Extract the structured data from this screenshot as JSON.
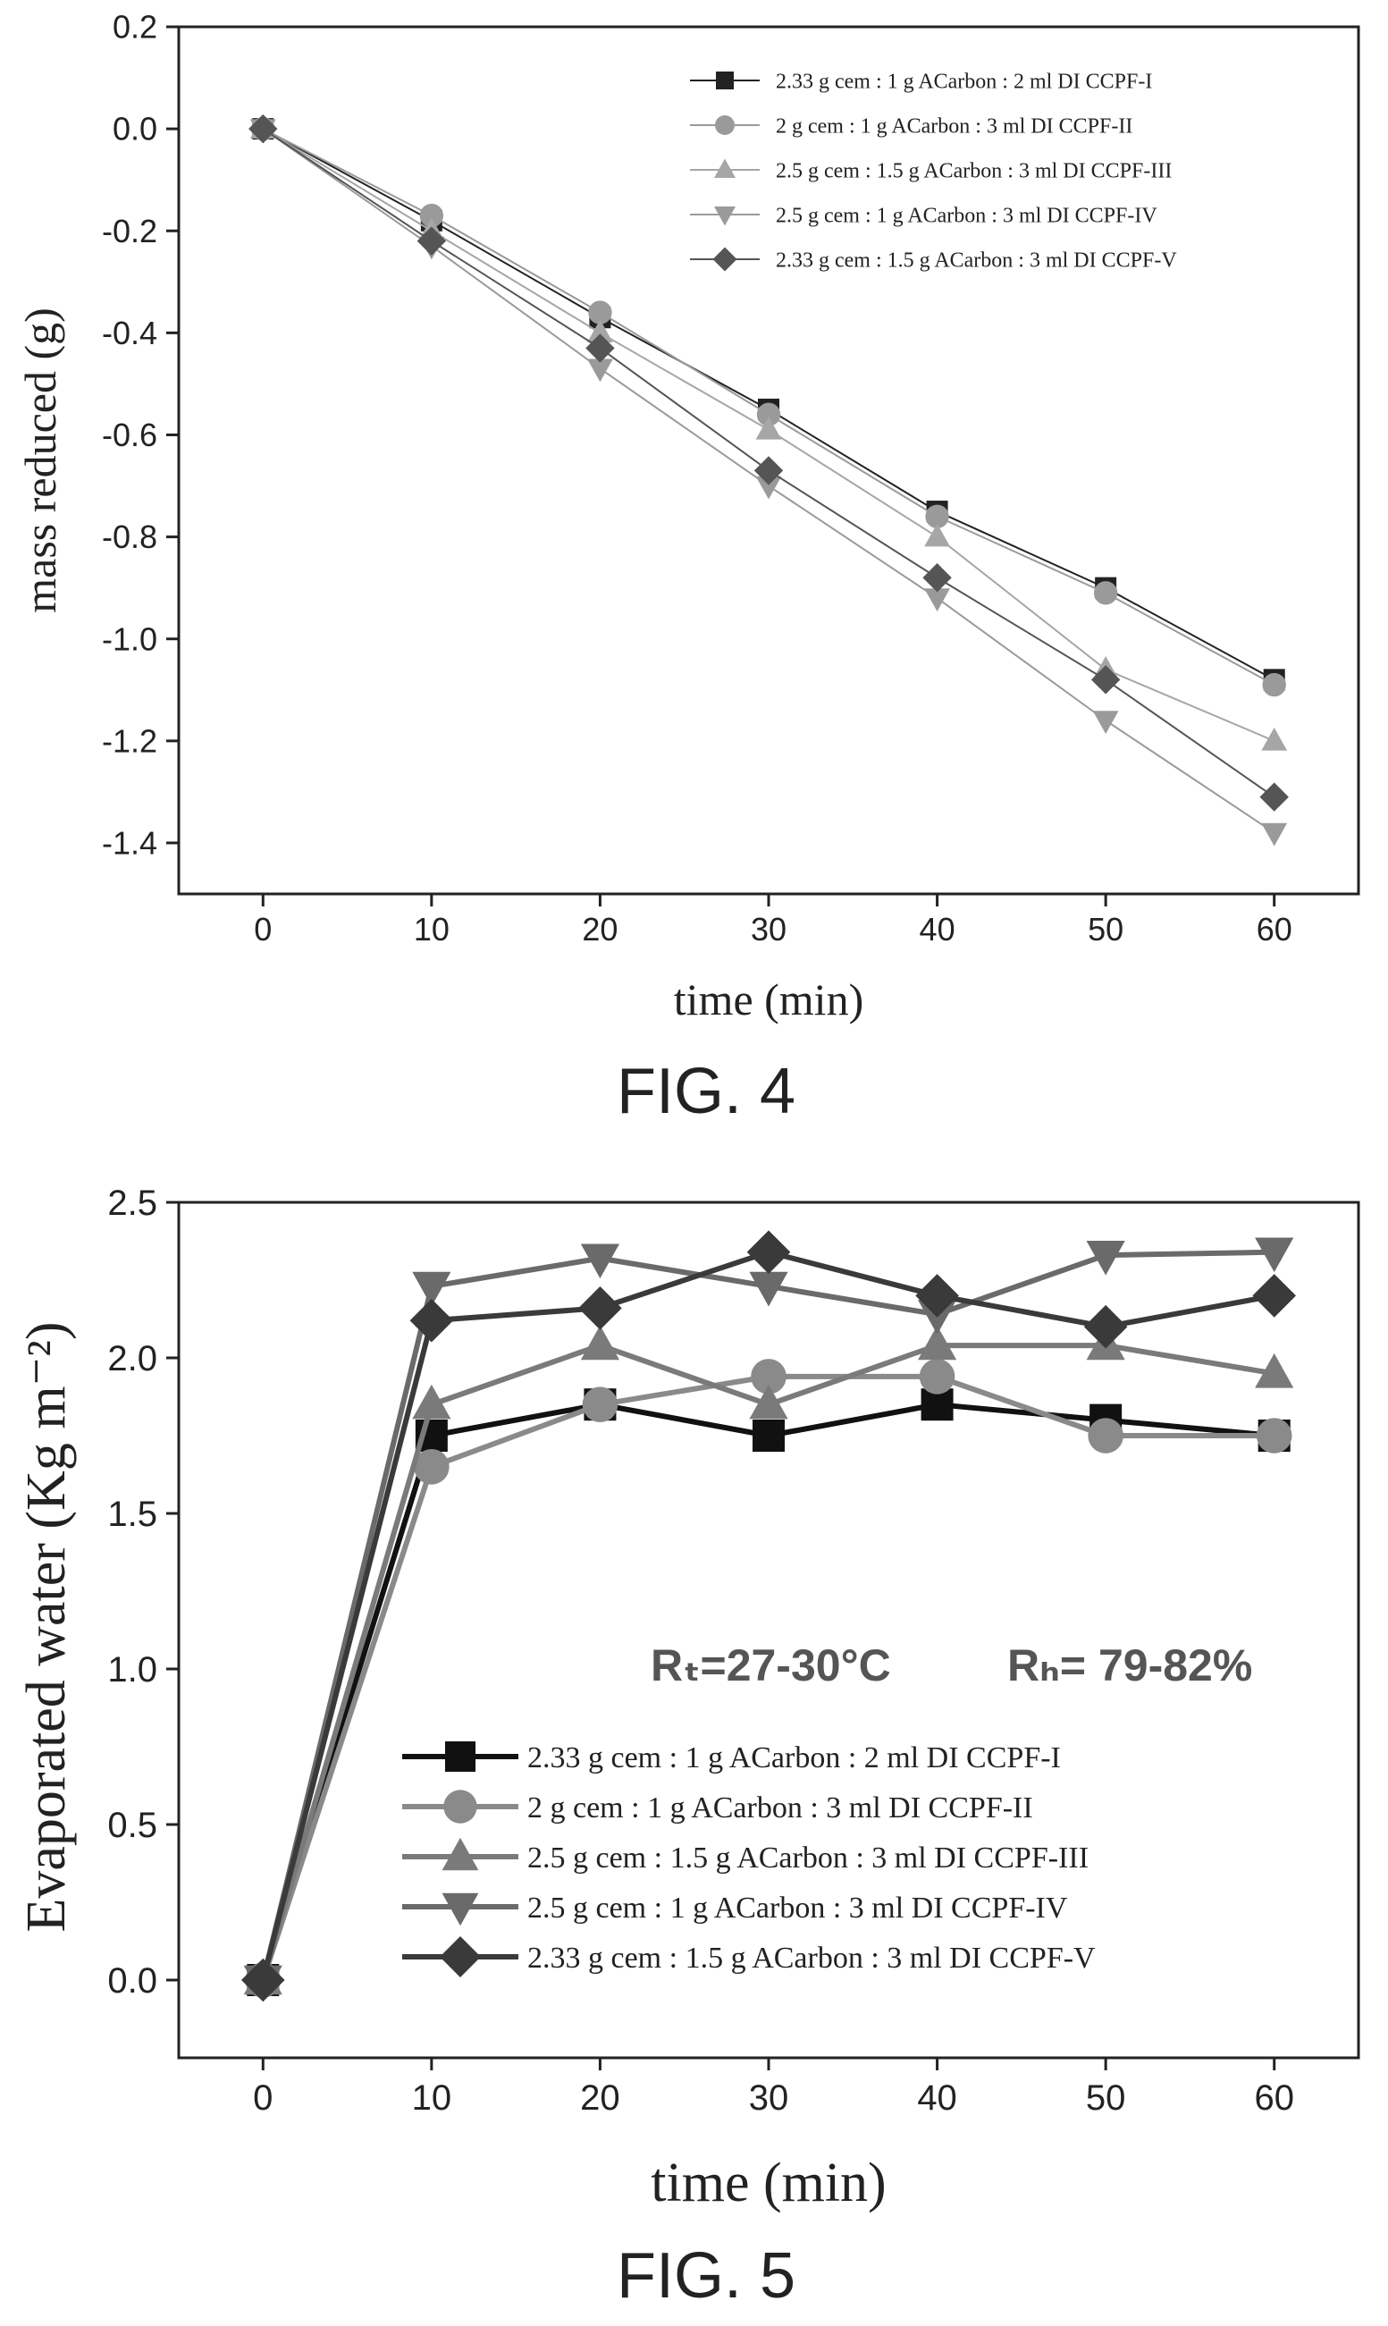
{
  "chart_data": [
    {
      "type": "line",
      "figure_label": "FIG. 4",
      "title": "",
      "xlabel": "time (min)",
      "ylabel": "mass reduced (g)",
      "xlim": [
        -5,
        65
      ],
      "ylim": [
        -1.5,
        0.2
      ],
      "x_ticks": [
        0,
        10,
        20,
        30,
        40,
        50,
        60
      ],
      "y_ticks": [
        0.2,
        0.0,
        -0.2,
        -0.4,
        -0.6,
        -0.8,
        -1.0,
        -1.2,
        -1.4
      ],
      "y_tick_labels": [
        "0.2",
        "0.0",
        "-0.2",
        "-0.4",
        "-0.6",
        "-0.8",
        "-1.0",
        "-1.2",
        "-1.4"
      ],
      "grid": false,
      "legend_position": "top-right",
      "x": [
        0,
        10,
        20,
        30,
        40,
        50,
        60
      ],
      "series": [
        {
          "name": "2.33  g cem : 1  g ACarbon   : 2 ml DI CCPF-I",
          "marker": "square",
          "color": "#222222",
          "values": [
            0.0,
            -0.18,
            -0.37,
            -0.55,
            -0.75,
            -0.9,
            -1.08
          ]
        },
        {
          "name": "2      g cem : 1   g ACarbon   : 3 ml DI CCPF-II",
          "marker": "circle",
          "color": "#9a9a9a",
          "values": [
            0.0,
            -0.17,
            -0.36,
            -0.56,
            -0.76,
            -0.91,
            -1.09
          ]
        },
        {
          "name": "2.5    g cem : 1.5 g ACarbon   : 3 ml DI CCPF-III",
          "marker": "triangle-up",
          "color": "#a6a6a6",
          "values": [
            0.0,
            -0.2,
            -0.4,
            -0.59,
            -0.8,
            -1.06,
            -1.2
          ]
        },
        {
          "name": "2.5    g cem : 1     g ACarbon  : 3 ml DI CCPF-IV",
          "marker": "triangle-down",
          "color": "#9a9a9a",
          "values": [
            0.0,
            -0.23,
            -0.47,
            -0.7,
            -0.92,
            -1.16,
            -1.38
          ]
        },
        {
          "name": "2.33 g cem : 1.5 g ACarbon    : 3 ml DI CCPF-V",
          "marker": "diamond",
          "color": "#555555",
          "values": [
            0.0,
            -0.22,
            -0.43,
            -0.67,
            -0.88,
            -1.08,
            -1.31
          ]
        }
      ]
    },
    {
      "type": "line",
      "figure_label": "FIG. 5",
      "title": "",
      "xlabel": "time (min)",
      "ylabel": "Evaporated water (Kg m⁻²)",
      "xlim": [
        -5,
        65
      ],
      "ylim": [
        -0.25,
        2.5
      ],
      "x_ticks": [
        0,
        10,
        20,
        30,
        40,
        50,
        60
      ],
      "y_ticks": [
        2.5,
        2.0,
        1.5,
        1.0,
        0.5,
        0.0
      ],
      "y_tick_labels": [
        "2.5",
        "2.0",
        "1.5",
        "1.0",
        "0.5",
        "0.0"
      ],
      "grid": false,
      "legend_position": "bottom-right",
      "annotations": [
        "Rₜ=27-30°C",
        "Rₕ= 79-82%"
      ],
      "x": [
        0,
        10,
        20,
        30,
        40,
        50,
        60
      ],
      "series": [
        {
          "name": "2.33  g cem : 1  g ACarbon     : 2 ml DI CCPF-I",
          "marker": "square",
          "color": "#111111",
          "values": [
            0.0,
            1.75,
            1.85,
            1.75,
            1.85,
            1.8,
            1.75
          ]
        },
        {
          "name": "2        g cem : 1   g ACarbon    : 3 ml DI CCPF-II",
          "marker": "circle",
          "color": "#8a8a8a",
          "values": [
            0.0,
            1.65,
            1.85,
            1.94,
            1.94,
            1.75,
            1.75
          ]
        },
        {
          "name": "2.5    g cem : 1.5 g ACarbon    : 3 ml DI CCPF-III",
          "marker": "triangle-up",
          "color": "#7a7a7a",
          "values": [
            0.0,
            1.85,
            2.04,
            1.85,
            2.04,
            2.04,
            1.95
          ]
        },
        {
          "name": "2.5    g cem : 1      g ACarbon  : 3 ml DI CCPF-IV",
          "marker": "triangle-down",
          "color": "#6a6a6a",
          "values": [
            0.0,
            2.23,
            2.32,
            2.23,
            2.14,
            2.33,
            2.34
          ]
        },
        {
          "name": "2.33 g cem : 1.5 g ACarbon    : 3 ml DI CCPF-V",
          "marker": "diamond",
          "color": "#3a3a3a",
          "values": [
            0.0,
            2.12,
            2.16,
            2.34,
            2.2,
            2.1,
            2.2
          ]
        }
      ]
    }
  ]
}
